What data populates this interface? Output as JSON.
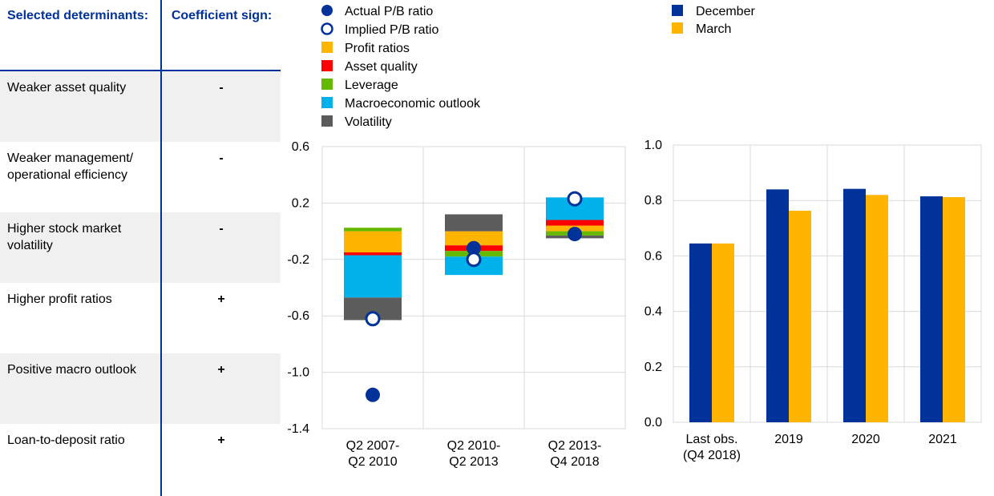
{
  "table": {
    "header_left": "Selected determinants:",
    "header_right": "Coefficient sign:",
    "rows": [
      {
        "label": "Weaker asset quality",
        "sign": "-"
      },
      {
        "label": "Weaker management/ operational efficiency",
        "sign": "-"
      },
      {
        "label": "Higher stock market volatility",
        "sign": "-"
      },
      {
        "label": "Higher profit ratios",
        "sign": "+"
      },
      {
        "label": "Positive macro outlook",
        "sign": "+"
      },
      {
        "label": "Loan-to-deposit ratio",
        "sign": "+"
      }
    ]
  },
  "colors": {
    "navy": "#003299",
    "profit": "#ffb400",
    "asset": "#ff0000",
    "leverage": "#65b800",
    "macro": "#00b1ea",
    "volatility": "#5c5c5c",
    "grid": "#d9d9d9"
  },
  "chart_data": [
    {
      "type": "bar",
      "stacked": true,
      "title": "",
      "categories": [
        "Q2 2007-\nQ2 2010",
        "Q2 2010-\nQ2 2013",
        "Q2 2013-\nQ4 2018"
      ],
      "ylim": [
        -1.4,
        0.6
      ],
      "yticks": [
        0.6,
        0.2,
        -0.2,
        -0.6,
        -1.0,
        -1.4
      ],
      "ytick_labels": [
        "0.6",
        "0.2",
        "-0.2",
        "-0.6",
        "-1.0",
        "-1.4"
      ],
      "legend_position": "top",
      "legend": [
        {
          "name": "Actual P/B ratio",
          "kind": "dot-filled"
        },
        {
          "name": "Implied P/B ratio",
          "kind": "dot-hollow"
        },
        {
          "name": "Profit ratios",
          "kind": "square",
          "color_key": "profit"
        },
        {
          "name": "Asset quality",
          "kind": "square",
          "color_key": "asset"
        },
        {
          "name": "Leverage",
          "kind": "square",
          "color_key": "leverage"
        },
        {
          "name": "Macroeconomic outlook",
          "kind": "square",
          "color_key": "macro"
        },
        {
          "name": "Volatility",
          "kind": "square",
          "color_key": "volatility"
        }
      ],
      "series": [
        {
          "name": "Profit ratios",
          "color_key": "profit",
          "values": [
            -0.15,
            -0.1,
            0.04
          ]
        },
        {
          "name": "Asset quality",
          "color_key": "asset",
          "values": [
            -0.02,
            -0.04,
            0.04
          ]
        },
        {
          "name": "Leverage",
          "color_key": "leverage",
          "values": [
            0.025,
            -0.04,
            -0.03
          ]
        },
        {
          "name": "Macroeconomic outlook",
          "color_key": "macro",
          "values": [
            -0.3,
            -0.13,
            0.16
          ]
        },
        {
          "name": "Volatility",
          "color_key": "volatility",
          "values": [
            -0.16,
            0.12,
            -0.02
          ]
        }
      ],
      "points": {
        "actual": [
          -1.16,
          -0.12,
          -0.02
        ],
        "implied": [
          -0.62,
          -0.2,
          0.23
        ]
      }
    },
    {
      "type": "bar",
      "title": "",
      "categories": [
        "Last obs.\n(Q4 2018)",
        "2019",
        "2020",
        "2021"
      ],
      "ylim": [
        0.0,
        1.0
      ],
      "yticks": [
        0.0,
        0.2,
        0.4,
        0.6,
        0.8,
        1.0
      ],
      "ytick_labels": [
        "0.0",
        "0.2",
        "0.4",
        "0.6",
        "0.8",
        "1.0"
      ],
      "legend_position": "top",
      "series": [
        {
          "name": "December",
          "color_key": "navy",
          "values": [
            0.645,
            0.84,
            0.842,
            0.815
          ]
        },
        {
          "name": "March",
          "color_key": "profit",
          "values": [
            0.645,
            0.763,
            0.82,
            0.812
          ]
        }
      ]
    }
  ]
}
